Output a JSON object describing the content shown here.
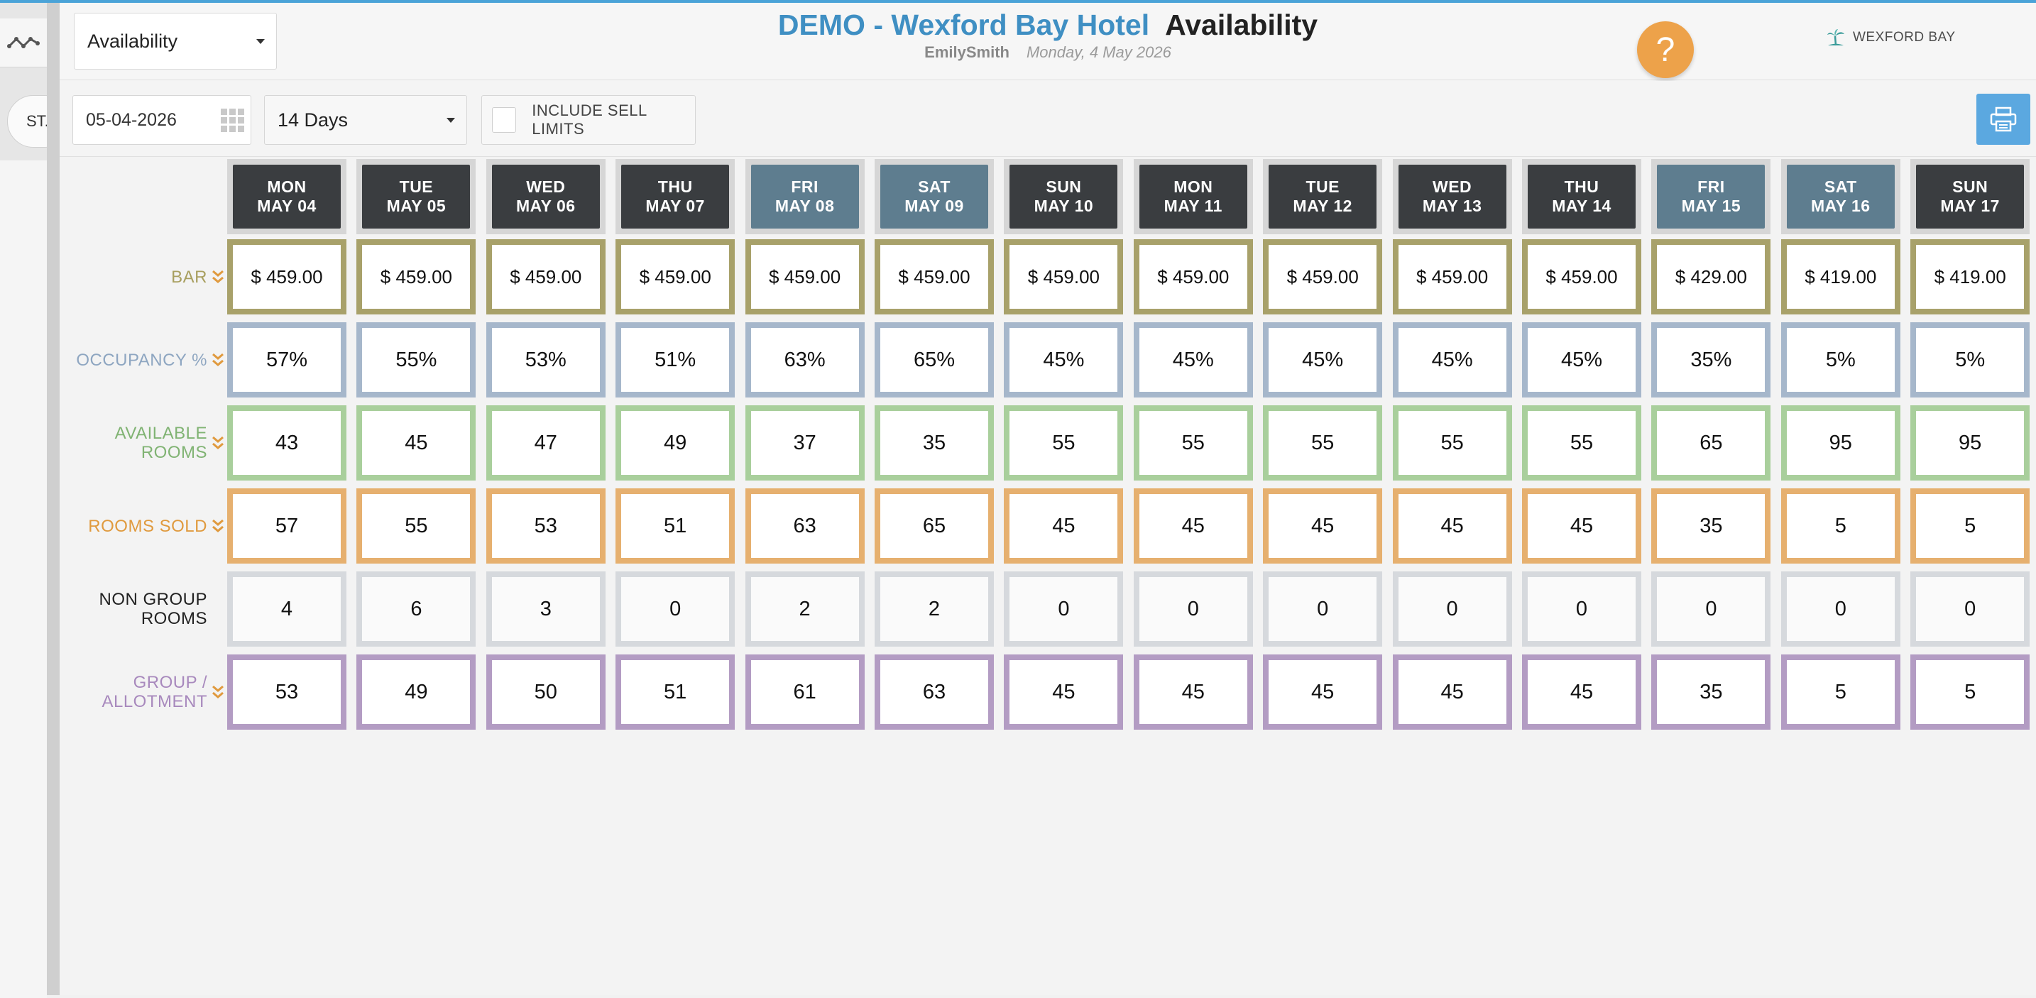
{
  "header": {
    "view_select": "Availability",
    "hotel_title": "DEMO - Wexford Bay Hotel",
    "section_title": "Availability",
    "user": "EmilySmith",
    "date": "Monday, 4 May 2026",
    "help_label": "?",
    "brand_label": "WEXFORD BAY"
  },
  "left_rail": {
    "tab_label": "ST."
  },
  "toolbar": {
    "date_value": "05-04-2026",
    "days_select": "14 Days",
    "sell_limits_label": "INCLUDE SELL LIMITS"
  },
  "days": [
    {
      "dow": "MON",
      "date": "MAY 04",
      "weekend": false
    },
    {
      "dow": "TUE",
      "date": "MAY 05",
      "weekend": false
    },
    {
      "dow": "WED",
      "date": "MAY 06",
      "weekend": false
    },
    {
      "dow": "THU",
      "date": "MAY 07",
      "weekend": false
    },
    {
      "dow": "FRI",
      "date": "MAY 08",
      "weekend": true
    },
    {
      "dow": "SAT",
      "date": "MAY 09",
      "weekend": true
    },
    {
      "dow": "SUN",
      "date": "MAY 10",
      "weekend": false
    },
    {
      "dow": "MON",
      "date": "MAY 11",
      "weekend": false
    },
    {
      "dow": "TUE",
      "date": "MAY 12",
      "weekend": false
    },
    {
      "dow": "WED",
      "date": "MAY 13",
      "weekend": false
    },
    {
      "dow": "THU",
      "date": "MAY 14",
      "weekend": false
    },
    {
      "dow": "FRI",
      "date": "MAY 15",
      "weekend": true
    },
    {
      "dow": "SAT",
      "date": "MAY 16",
      "weekend": true
    },
    {
      "dow": "SUN",
      "date": "MAY 17",
      "weekend": false
    }
  ],
  "rows": [
    {
      "key": "bar",
      "label_lines": [
        "BAR"
      ],
      "label_color": "#a89f5f",
      "expandable": true,
      "values": [
        "$ 459.00",
        "$ 459.00",
        "$ 459.00",
        "$ 459.00",
        "$ 459.00",
        "$ 459.00",
        "$ 459.00",
        "$ 459.00",
        "$ 459.00",
        "$ 459.00",
        "$ 459.00",
        "$ 429.00",
        "$ 419.00",
        "$ 419.00"
      ]
    },
    {
      "key": "occ",
      "label_lines": [
        "OCCUPANCY %"
      ],
      "label_color": "#8ea6c1",
      "expandable": true,
      "values": [
        "57%",
        "55%",
        "53%",
        "51%",
        "63%",
        "65%",
        "45%",
        "45%",
        "45%",
        "45%",
        "45%",
        "35%",
        "5%",
        "5%"
      ]
    },
    {
      "key": "avail",
      "label_lines": [
        "AVAILABLE",
        "ROOMS"
      ],
      "label_color": "#80b373",
      "expandable": true,
      "values": [
        "43",
        "45",
        "47",
        "49",
        "37",
        "35",
        "55",
        "55",
        "55",
        "55",
        "55",
        "65",
        "95",
        "95"
      ]
    },
    {
      "key": "sold",
      "label_lines": [
        "ROOMS SOLD"
      ],
      "label_color": "#e09a3e",
      "expandable": true,
      "values": [
        "57",
        "55",
        "53",
        "51",
        "63",
        "65",
        "45",
        "45",
        "45",
        "45",
        "45",
        "35",
        "5",
        "5"
      ]
    },
    {
      "key": "nongroup",
      "label_lines": [
        "NON GROUP",
        "ROOMS"
      ],
      "label_color": "#222222",
      "expandable": false,
      "values": [
        "4",
        "6",
        "3",
        "0",
        "2",
        "2",
        "0",
        "0",
        "0",
        "0",
        "0",
        "0",
        "0",
        "0"
      ]
    },
    {
      "key": "group",
      "label_lines": [
        "GROUP /",
        "ALLOTMENT"
      ],
      "label_color": "#a889bd",
      "expandable": true,
      "values": [
        "53",
        "49",
        "50",
        "51",
        "61",
        "63",
        "45",
        "45",
        "45",
        "45",
        "45",
        "35",
        "5",
        "5"
      ]
    }
  ],
  "colors": {
    "accent": "#3f8fc3",
    "help_button": "#eda24a",
    "print_button": "#5ba8e0",
    "weekday_header": "#3a3d40",
    "weekend_header": "#5e7d8f"
  },
  "icons": {
    "rail_tab": "trend-line-icon",
    "calendar": "grid-calendar-icon",
    "print": "printer-icon",
    "brand": "palm-tree-icon",
    "expand": "double-chevron-down-icon"
  }
}
